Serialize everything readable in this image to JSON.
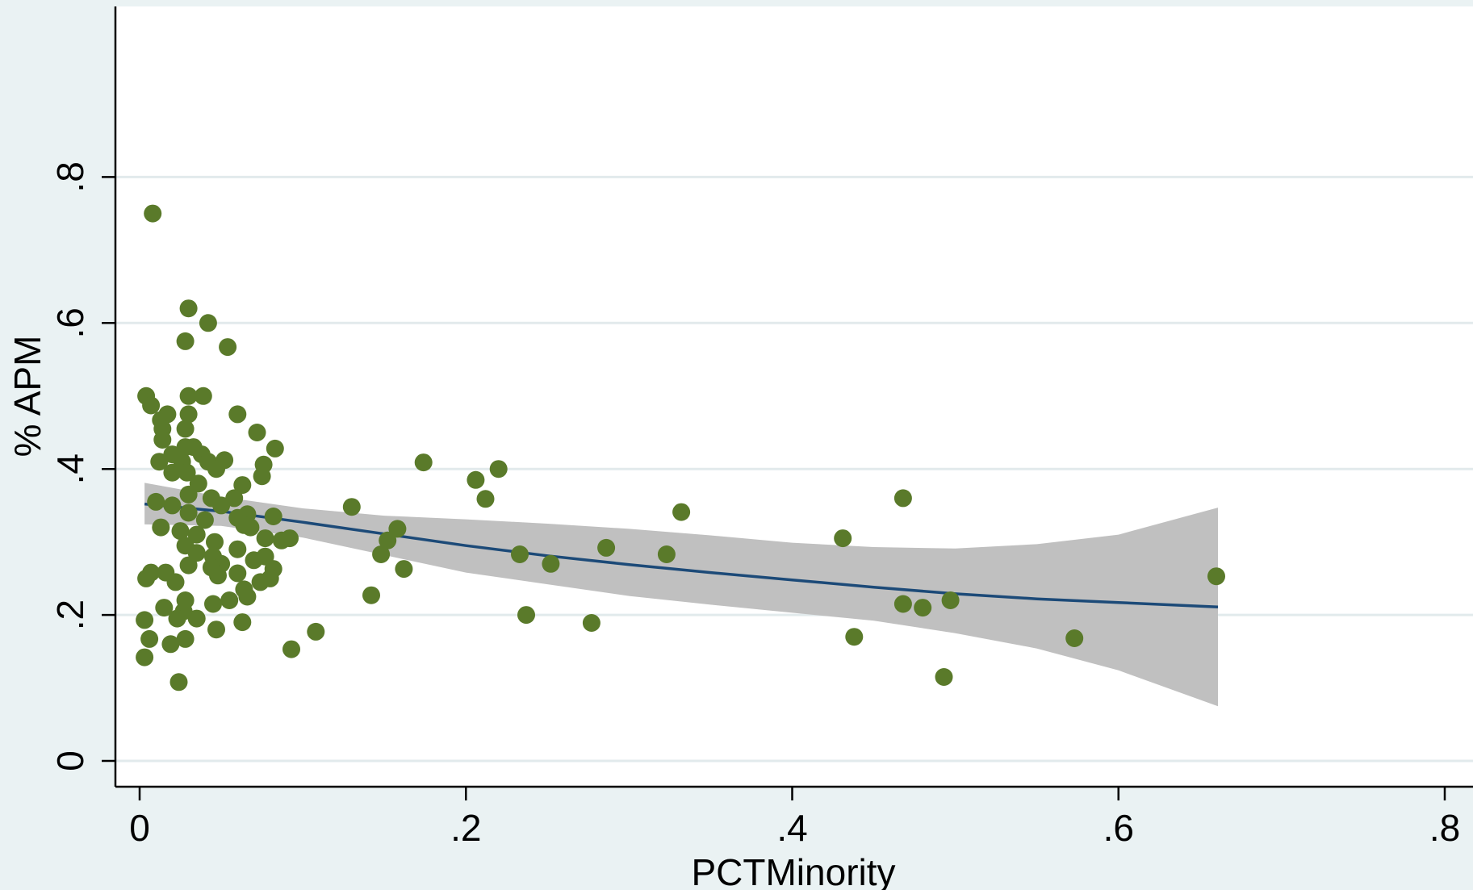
{
  "chart_data": {
    "type": "scatter",
    "title": "",
    "xlabel": "PCTMinority",
    "ylabel": "% APM",
    "xlim": [
      -0.02,
      0.82
    ],
    "ylim": [
      -0.03,
      0.83
    ],
    "xticks": [
      {
        "value": 0,
        "label": "0"
      },
      {
        "value": 0.2,
        "label": ".2"
      },
      {
        "value": 0.4,
        "label": ".4"
      },
      {
        "value": 0.6,
        "label": ".6"
      },
      {
        "value": 0.8,
        "label": ".8"
      }
    ],
    "yticks": [
      {
        "value": 0,
        "label": "0"
      },
      {
        "value": 0.2,
        "label": ".2"
      },
      {
        "value": 0.4,
        "label": ".4"
      },
      {
        "value": 0.6,
        "label": ".6"
      },
      {
        "value": 0.8,
        "label": ".8"
      }
    ],
    "grid": "horizontal",
    "colors": {
      "plot_background": "#ffffff",
      "outer_background": "#eaf2f3",
      "points": "#5a7a2a",
      "fit_line": "#1c4a78",
      "ci_band": "#c0c0c0",
      "gridlines": "#e2eaec"
    },
    "series": [
      {
        "type": "scatter",
        "points": [
          [
            0.008,
            0.75
          ],
          [
            0.03,
            0.62
          ],
          [
            0.042,
            0.6
          ],
          [
            0.028,
            0.575
          ],
          [
            0.054,
            0.567
          ],
          [
            0.004,
            0.5
          ],
          [
            0.03,
            0.5
          ],
          [
            0.039,
            0.5
          ],
          [
            0.007,
            0.487
          ],
          [
            0.013,
            0.467
          ],
          [
            0.017,
            0.475
          ],
          [
            0.03,
            0.475
          ],
          [
            0.06,
            0.475
          ],
          [
            0.014,
            0.455
          ],
          [
            0.028,
            0.455
          ],
          [
            0.072,
            0.45
          ],
          [
            0.014,
            0.44
          ],
          [
            0.028,
            0.43
          ],
          [
            0.033,
            0.43
          ],
          [
            0.083,
            0.428
          ],
          [
            0.02,
            0.42
          ],
          [
            0.038,
            0.42
          ],
          [
            0.012,
            0.41
          ],
          [
            0.026,
            0.41
          ],
          [
            0.042,
            0.41
          ],
          [
            0.052,
            0.412
          ],
          [
            0.076,
            0.406
          ],
          [
            0.02,
            0.395
          ],
          [
            0.029,
            0.395
          ],
          [
            0.047,
            0.4
          ],
          [
            0.075,
            0.39
          ],
          [
            0.036,
            0.38
          ],
          [
            0.063,
            0.378
          ],
          [
            0.03,
            0.365
          ],
          [
            0.044,
            0.36
          ],
          [
            0.058,
            0.36
          ],
          [
            0.01,
            0.355
          ],
          [
            0.02,
            0.35
          ],
          [
            0.05,
            0.35
          ],
          [
            0.066,
            0.338
          ],
          [
            0.03,
            0.34
          ],
          [
            0.082,
            0.335
          ],
          [
            0.06,
            0.333
          ],
          [
            0.04,
            0.33
          ],
          [
            0.013,
            0.32
          ],
          [
            0.064,
            0.323
          ],
          [
            0.068,
            0.32
          ],
          [
            0.025,
            0.315
          ],
          [
            0.035,
            0.31
          ],
          [
            0.077,
            0.305
          ],
          [
            0.087,
            0.302
          ],
          [
            0.092,
            0.305
          ],
          [
            0.028,
            0.295
          ],
          [
            0.046,
            0.3
          ],
          [
            0.06,
            0.29
          ],
          [
            0.035,
            0.285
          ],
          [
            0.07,
            0.275
          ],
          [
            0.045,
            0.28
          ],
          [
            0.077,
            0.28
          ],
          [
            0.05,
            0.27
          ],
          [
            0.03,
            0.268
          ],
          [
            0.044,
            0.265
          ],
          [
            0.082,
            0.263
          ],
          [
            0.007,
            0.258
          ],
          [
            0.016,
            0.258
          ],
          [
            0.06,
            0.257
          ],
          [
            0.048,
            0.254
          ],
          [
            0.004,
            0.25
          ],
          [
            0.022,
            0.245
          ],
          [
            0.074,
            0.245
          ],
          [
            0.08,
            0.25
          ],
          [
            0.064,
            0.235
          ],
          [
            0.066,
            0.225
          ],
          [
            0.028,
            0.22
          ],
          [
            0.055,
            0.22
          ],
          [
            0.045,
            0.215
          ],
          [
            0.015,
            0.21
          ],
          [
            0.027,
            0.205
          ],
          [
            0.023,
            0.195
          ],
          [
            0.035,
            0.195
          ],
          [
            0.003,
            0.193
          ],
          [
            0.063,
            0.19
          ],
          [
            0.047,
            0.18
          ],
          [
            0.006,
            0.167
          ],
          [
            0.028,
            0.167
          ],
          [
            0.019,
            0.16
          ],
          [
            0.003,
            0.142
          ],
          [
            0.024,
            0.108
          ],
          [
            0.108,
            0.177
          ],
          [
            0.093,
            0.153
          ],
          [
            0.13,
            0.348
          ],
          [
            0.142,
            0.227
          ],
          [
            0.148,
            0.283
          ],
          [
            0.152,
            0.302
          ],
          [
            0.158,
            0.318
          ],
          [
            0.162,
            0.263
          ],
          [
            0.174,
            0.409
          ],
          [
            0.206,
            0.385
          ],
          [
            0.212,
            0.359
          ],
          [
            0.22,
            0.4
          ],
          [
            0.233,
            0.283
          ],
          [
            0.237,
            0.2
          ],
          [
            0.252,
            0.27
          ],
          [
            0.277,
            0.189
          ],
          [
            0.286,
            0.292
          ],
          [
            0.323,
            0.283
          ],
          [
            0.332,
            0.341
          ],
          [
            0.431,
            0.305
          ],
          [
            0.438,
            0.17
          ],
          [
            0.468,
            0.36
          ],
          [
            0.468,
            0.215
          ],
          [
            0.48,
            0.21
          ],
          [
            0.493,
            0.115
          ],
          [
            0.497,
            0.22
          ],
          [
            0.573,
            0.168
          ],
          [
            0.66,
            0.253
          ]
        ]
      },
      {
        "type": "line",
        "name": "",
        "points": [
          [
            0.003,
            0.352
          ],
          [
            0.05,
            0.342
          ],
          [
            0.1,
            0.327
          ],
          [
            0.15,
            0.311
          ],
          [
            0.2,
            0.295
          ],
          [
            0.25,
            0.281
          ],
          [
            0.3,
            0.269
          ],
          [
            0.35,
            0.258
          ],
          [
            0.4,
            0.248
          ],
          [
            0.45,
            0.238
          ],
          [
            0.5,
            0.229
          ],
          [
            0.55,
            0.222
          ],
          [
            0.6,
            0.217
          ],
          [
            0.661,
            0.211
          ]
        ]
      },
      {
        "type": "area",
        "name": "",
        "upper": [
          [
            0.003,
            0.381
          ],
          [
            0.05,
            0.362
          ],
          [
            0.1,
            0.346
          ],
          [
            0.15,
            0.336
          ],
          [
            0.2,
            0.331
          ],
          [
            0.25,
            0.325
          ],
          [
            0.3,
            0.318
          ],
          [
            0.35,
            0.309
          ],
          [
            0.4,
            0.299
          ],
          [
            0.45,
            0.293
          ],
          [
            0.5,
            0.291
          ],
          [
            0.55,
            0.297
          ],
          [
            0.6,
            0.31
          ],
          [
            0.661,
            0.347
          ]
        ],
        "lower": [
          [
            0.661,
            0.075
          ],
          [
            0.6,
            0.124
          ],
          [
            0.55,
            0.154
          ],
          [
            0.5,
            0.175
          ],
          [
            0.45,
            0.192
          ],
          [
            0.4,
            0.203
          ],
          [
            0.35,
            0.214
          ],
          [
            0.3,
            0.226
          ],
          [
            0.25,
            0.242
          ],
          [
            0.2,
            0.258
          ],
          [
            0.15,
            0.282
          ],
          [
            0.1,
            0.306
          ],
          [
            0.05,
            0.322
          ],
          [
            0.003,
            0.324
          ]
        ]
      }
    ]
  }
}
